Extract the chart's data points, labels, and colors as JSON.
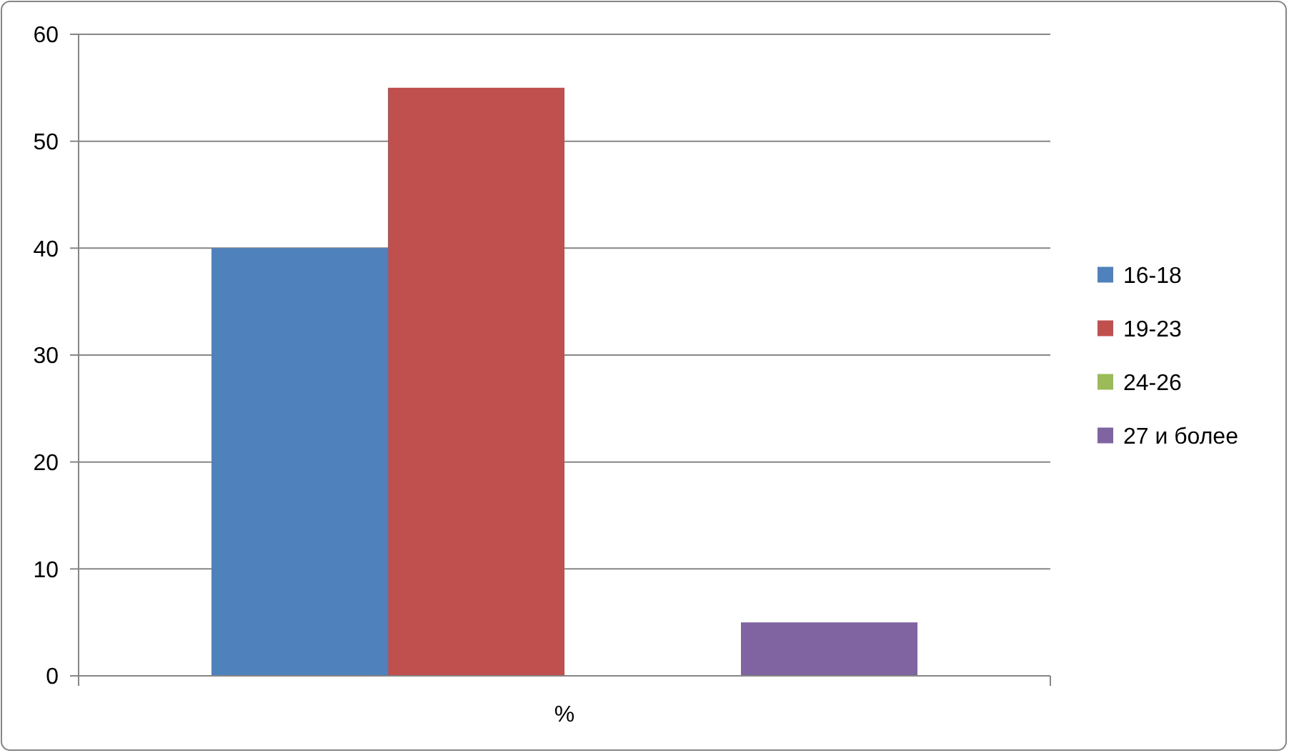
{
  "chart_data": {
    "type": "bar",
    "categories": [
      "%"
    ],
    "series": [
      {
        "name": "16-18",
        "color": "#4f81bd",
        "values": [
          40
        ]
      },
      {
        "name": "19-23",
        "color": "#c0504d",
        "values": [
          55
        ]
      },
      {
        "name": "24-26",
        "color": "#9bbb59",
        "values": [
          0
        ]
      },
      {
        "name": "27 и более",
        "color": "#8064a2",
        "values": [
          5
        ]
      }
    ],
    "ylim": [
      0,
      60
    ],
    "yticks": [
      0,
      10,
      20,
      30,
      40,
      50,
      60
    ],
    "grid": "y",
    "legend": "right"
  }
}
